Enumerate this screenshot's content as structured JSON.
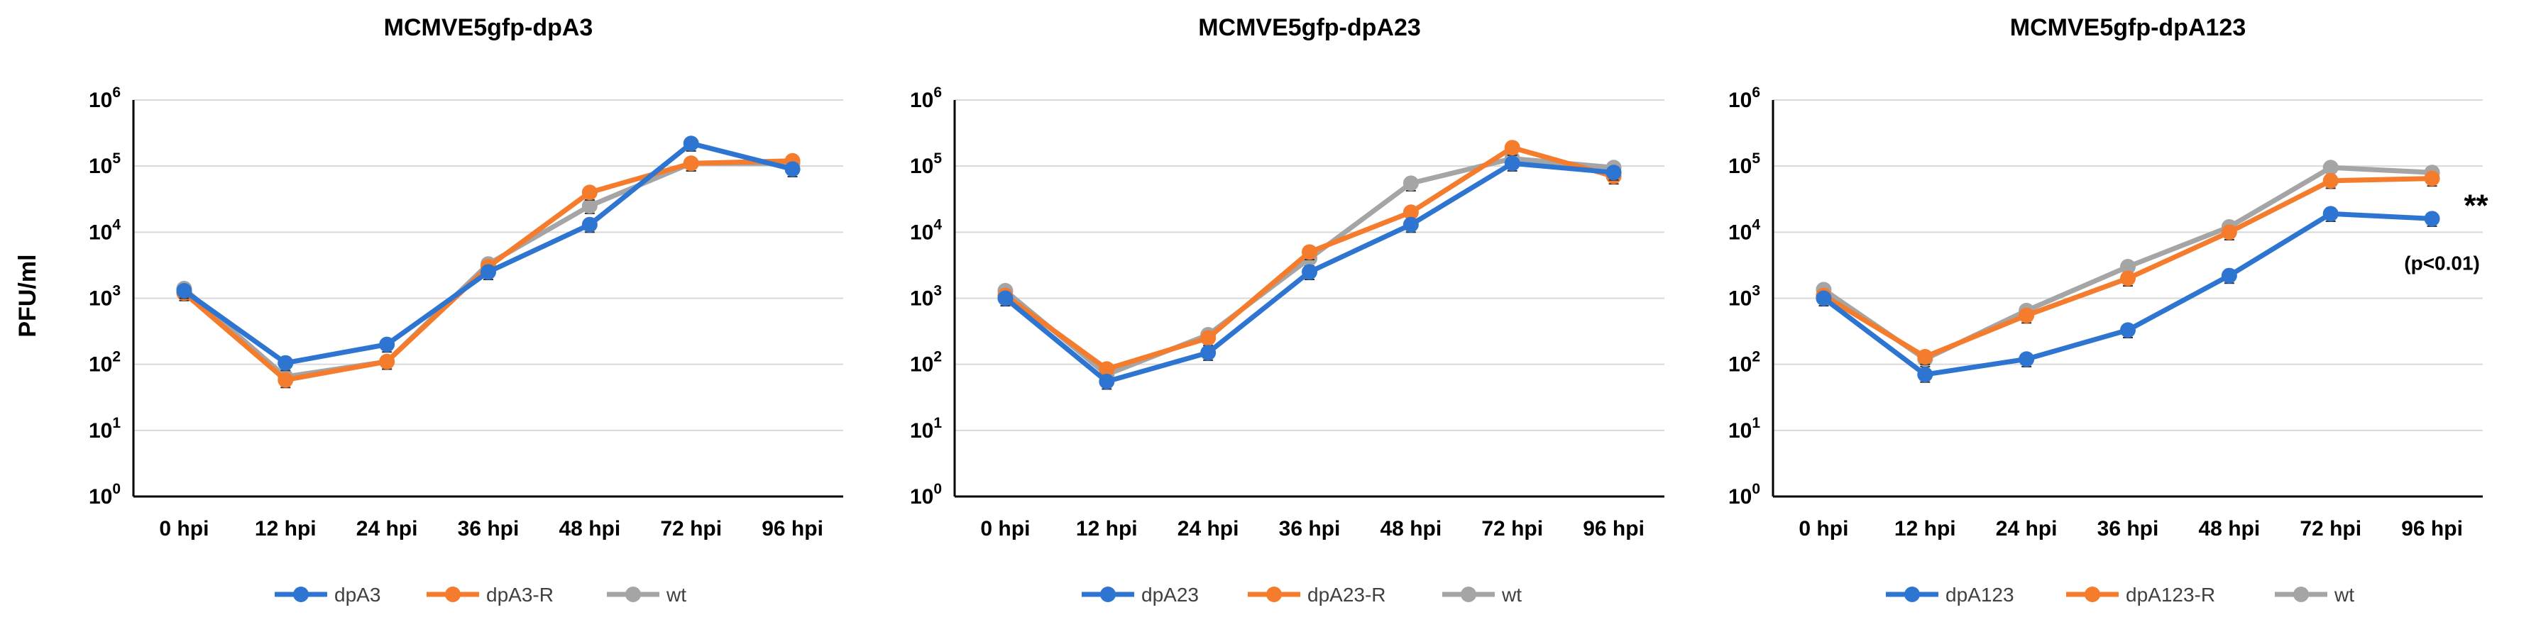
{
  "figure": {
    "ylabel": "PFU/ml",
    "ytick_exponents": [
      "0",
      "1",
      "2",
      "3",
      "4",
      "5",
      "6"
    ],
    "ytick_base": "10"
  },
  "colors": {
    "mutant": "#2e75d1",
    "revertant": "#f47c2c",
    "wt": "#a5a5a5",
    "grid": "#d9d9d9",
    "axis": "#000000"
  },
  "chart_data": [
    {
      "type": "line",
      "title": "MCMVE5gfp-dpA3",
      "xlabel": "",
      "ylabel": "PFU/ml",
      "yscale": "log",
      "ylim": [
        1,
        1000000
      ],
      "grid": "horizontal",
      "legend_position": "bottom",
      "categories": [
        "0 hpi",
        "12 hpi",
        "24 hpi",
        "36 hpi",
        "48 hpi",
        "72 hpi",
        "96 hpi"
      ],
      "series": [
        {
          "name": "dpA3",
          "color": "#2e75d1",
          "values": [
            1300,
            105,
            200,
            2500,
            13000,
            220000,
            90000
          ]
        },
        {
          "name": "dpA3-R",
          "color": "#f47c2c",
          "values": [
            1200,
            58,
            110,
            3000,
            40000,
            110000,
            120000
          ]
        },
        {
          "name": "wt",
          "color": "#a5a5a5",
          "values": [
            1400,
            65,
            110,
            3300,
            25000,
            110000,
            110000
          ]
        }
      ],
      "annotations": []
    },
    {
      "type": "line",
      "title": "MCMVE5gfp-dpA23",
      "xlabel": "",
      "ylabel": "",
      "yscale": "log",
      "ylim": [
        1,
        1000000
      ],
      "grid": "horizontal",
      "legend_position": "bottom",
      "categories": [
        "0 hpi",
        "12 hpi",
        "24 hpi",
        "36 hpi",
        "48 hpi",
        "72 hpi",
        "96 hpi"
      ],
      "series": [
        {
          "name": "dpA23",
          "color": "#2e75d1",
          "values": [
            1000,
            55,
            150,
            2500,
            13000,
            110000,
            80000
          ]
        },
        {
          "name": "dpA23-R",
          "color": "#f47c2c",
          "values": [
            1100,
            85,
            250,
            5000,
            20000,
            190000,
            70000
          ]
        },
        {
          "name": "wt",
          "color": "#a5a5a5",
          "values": [
            1300,
            70,
            280,
            4000,
            55000,
            130000,
            95000
          ]
        }
      ],
      "annotations": []
    },
    {
      "type": "line",
      "title": "MCMVE5gfp-dpA123",
      "xlabel": "",
      "ylabel": "",
      "yscale": "log",
      "ylim": [
        1,
        1000000
      ],
      "grid": "horizontal",
      "legend_position": "bottom",
      "categories": [
        "0 hpi",
        "12 hpi",
        "24 hpi",
        "36 hpi",
        "48 hpi",
        "72 hpi",
        "96 hpi"
      ],
      "series": [
        {
          "name": "dpA123",
          "color": "#2e75d1",
          "values": [
            1000,
            70,
            120,
            330,
            2200,
            19000,
            16000
          ]
        },
        {
          "name": "dpA123-R",
          "color": "#f47c2c",
          "values": [
            1100,
            130,
            550,
            2000,
            10000,
            60000,
            65000
          ]
        },
        {
          "name": "wt",
          "color": "#a5a5a5",
          "values": [
            1350,
            120,
            650,
            3000,
            12000,
            95000,
            80000
          ]
        }
      ],
      "annotations": [
        {
          "text": "**",
          "series": 0,
          "point": 6
        },
        {
          "text": "(p<0.01)",
          "series": 0,
          "point": 6
        }
      ]
    }
  ]
}
